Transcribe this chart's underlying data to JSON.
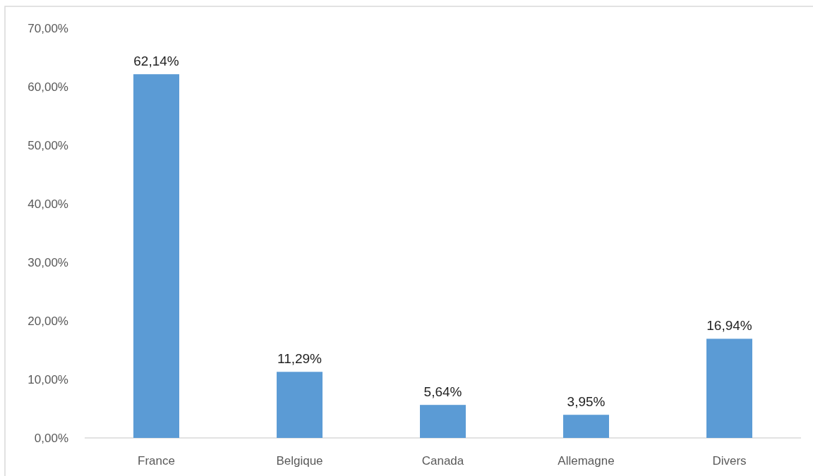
{
  "chart_data": {
    "type": "bar",
    "categories": [
      "France",
      "Belgique",
      "Canada",
      "Allemagne",
      "Divers"
    ],
    "values": [
      62.14,
      11.29,
      5.64,
      3.95,
      16.94
    ],
    "value_labels": [
      "62,14%",
      "11,29%",
      "5,64%",
      "3,95%",
      "16,94%"
    ],
    "color": "#5b9bd5",
    "ylim": [
      0,
      70
    ],
    "yticks": [
      {
        "value": 0,
        "label": "0,00%"
      },
      {
        "value": 10,
        "label": "10,00%"
      },
      {
        "value": 20,
        "label": "20,00%"
      },
      {
        "value": 30,
        "label": "30,00%"
      },
      {
        "value": 40,
        "label": "40,00%"
      },
      {
        "value": 50,
        "label": "50,00%"
      },
      {
        "value": 60,
        "label": "60,00%"
      },
      {
        "value": 70,
        "label": "70,00%"
      }
    ]
  }
}
